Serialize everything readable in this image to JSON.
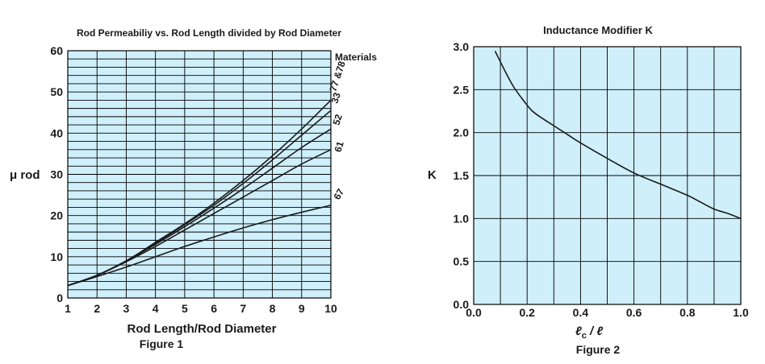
{
  "chart_data": [
    {
      "type": "line",
      "title": "Rod Permeabiliy vs. Rod Length divided by Rod Diameter",
      "xlabel": "Rod Length/Rod Diameter",
      "ylabel": "μ rod",
      "caption": "Figure 1",
      "legend_title": "Materials",
      "xlim": [
        1,
        10
      ],
      "ylim": [
        0,
        60
      ],
      "x_ticks": [
        "1",
        "2",
        "3",
        "4",
        "5",
        "6",
        "7",
        "8",
        "9",
        "10"
      ],
      "y_ticks": [
        "0",
        "10",
        "20",
        "30",
        "40",
        "50",
        "60"
      ],
      "grid": true,
      "grid_color": "#000000",
      "plot_background": "#cfeffb",
      "line_color": "#1a1a1a",
      "series": [
        {
          "name": "77 &78",
          "x": [
            1,
            2,
            3,
            4,
            5,
            6,
            7,
            8,
            9,
            10
          ],
          "values": [
            3,
            5.5,
            9,
            13.5,
            18,
            23,
            28.5,
            34.5,
            41,
            48
          ]
        },
        {
          "name": "33",
          "x": [
            1,
            2,
            3,
            4,
            5,
            6,
            7,
            8,
            9,
            10
          ],
          "values": [
            3,
            5.5,
            9,
            13.3,
            17.8,
            22.5,
            27.8,
            33.5,
            39.5,
            45.5
          ]
        },
        {
          "name": "52",
          "x": [
            1,
            2,
            3,
            4,
            5,
            6,
            7,
            8,
            9,
            10
          ],
          "values": [
            3,
            5.5,
            9,
            13,
            17.3,
            21.8,
            26.5,
            31.5,
            36.5,
            41
          ]
        },
        {
          "name": "61",
          "x": [
            1,
            2,
            3,
            4,
            5,
            6,
            7,
            8,
            9,
            10
          ],
          "values": [
            3,
            5.5,
            8.8,
            12.5,
            16.5,
            20.5,
            24.5,
            28.5,
            32.5,
            36
          ]
        },
        {
          "name": "67",
          "x": [
            1,
            2,
            3,
            4,
            5,
            6,
            7,
            8,
            9,
            10
          ],
          "values": [
            3,
            5.2,
            7.5,
            10,
            12.5,
            14.8,
            17,
            19,
            20.8,
            22.5
          ]
        }
      ]
    },
    {
      "type": "line",
      "title": "Inductance Modifier K",
      "xlabel": "ℓc / ℓ",
      "xlabel_main": "ℓ",
      "xlabel_sub": "c",
      "xlabel_rest": " / ℓ",
      "ylabel": "K",
      "caption": "Figure 2",
      "xlim": [
        0.0,
        1.0
      ],
      "ylim": [
        0.0,
        3.0
      ],
      "x_ticks": [
        "0.0",
        "0.2",
        "0.4",
        "0.6",
        "0.8",
        "1.0"
      ],
      "y_ticks": [
        "0.0",
        "0.5",
        "1.0",
        "1.5",
        "2.0",
        "2.5",
        "3.0"
      ],
      "grid": true,
      "grid_color": "#000000",
      "plot_background": "#cfeffb",
      "line_color": "#1a1a1a",
      "series": [
        {
          "x": [
            0.08,
            0.12,
            0.15,
            0.18,
            0.2,
            0.22,
            0.25,
            0.3,
            0.35,
            0.4,
            0.5,
            0.6,
            0.7,
            0.8,
            0.85,
            0.9,
            0.95,
            1.0
          ],
          "values": [
            2.95,
            2.7,
            2.53,
            2.4,
            2.32,
            2.25,
            2.18,
            2.08,
            1.98,
            1.88,
            1.7,
            1.53,
            1.4,
            1.27,
            1.19,
            1.11,
            1.06,
            1.0
          ]
        }
      ]
    }
  ]
}
